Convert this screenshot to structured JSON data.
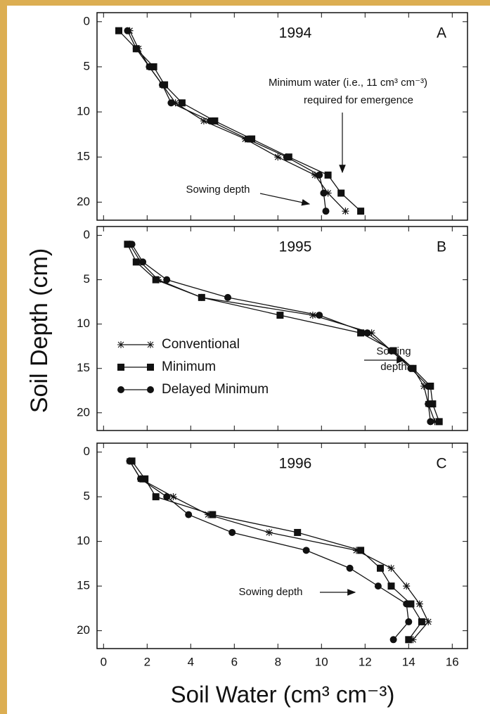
{
  "chart_data": [
    {
      "type": "line",
      "title": "1994",
      "panel": "A",
      "annotations": [
        "Minimum water (i.e., 11 cm³ cm⁻³)",
        "required for emergence",
        "Sowing depth"
      ],
      "depth": [
        1,
        3,
        5,
        7,
        9,
        11,
        13,
        15,
        17,
        19,
        21
      ],
      "xlim": [
        -0.3,
        16.7
      ],
      "ylim": [
        -1,
        22
      ],
      "y_inverted": true,
      "yticks": [
        0,
        5,
        10,
        15,
        20
      ],
      "series": [
        {
          "name": "Conventional",
          "color": "#111111",
          "marker": "asterisk",
          "values": [
            1.2,
            1.6,
            2.1,
            2.7,
            3.3,
            4.6,
            6.5,
            8.0,
            9.7,
            10.3,
            11.1
          ]
        },
        {
          "name": "Minimum",
          "color": "#111111",
          "marker": "square",
          "values": [
            0.7,
            1.5,
            2.3,
            2.8,
            3.6,
            5.1,
            6.8,
            8.5,
            10.3,
            10.9,
            11.8
          ]
        },
        {
          "name": "Delayed Minimum",
          "color": "#111111",
          "marker": "circle",
          "values": [
            1.1,
            1.5,
            2.1,
            2.7,
            3.1,
            4.9,
            6.6,
            8.4,
            9.9,
            10.1,
            10.2
          ]
        }
      ]
    },
    {
      "type": "line",
      "title": "1995",
      "panel": "B",
      "y_label": "Soil Depth (cm)",
      "legend": true,
      "annotations": [
        "Sowing",
        "depth"
      ],
      "depth": [
        1,
        3,
        5,
        7,
        9,
        11,
        13,
        15,
        17,
        19,
        21
      ],
      "xlim": [
        -0.3,
        16.7
      ],
      "ylim": [
        -1,
        22
      ],
      "y_inverted": true,
      "yticks": [
        0,
        5,
        10,
        15,
        20
      ],
      "series": [
        {
          "name": "Conventional",
          "color": "#111111",
          "marker": "asterisk",
          "values": [
            1.2,
            1.7,
            2.5,
            4.5,
            9.6,
            12.3,
            13.2,
            14.2,
            14.7,
            14.9,
            15.2
          ]
        },
        {
          "name": "Minimum",
          "color": "#111111",
          "marker": "square",
          "values": [
            1.1,
            1.5,
            2.4,
            4.5,
            8.1,
            11.8,
            13.3,
            14.2,
            15.0,
            15.1,
            15.4
          ]
        },
        {
          "name": "Delayed Minimum",
          "color": "#111111",
          "marker": "circle",
          "values": [
            1.3,
            1.8,
            2.9,
            5.7,
            9.9,
            12.1,
            13.2,
            14.1,
            14.9,
            14.9,
            15.0
          ]
        }
      ]
    },
    {
      "type": "line",
      "title": "1996",
      "panel": "C",
      "x_label": "Soil Water (cm³ cm⁻³)",
      "annotations": [
        "Sowing depth"
      ],
      "depth": [
        1,
        3,
        5,
        7,
        9,
        11,
        13,
        15,
        17,
        19,
        21
      ],
      "xlim": [
        -0.3,
        16.7
      ],
      "xticks": [
        0,
        2,
        4,
        6,
        8,
        10,
        12,
        14,
        16
      ],
      "ylim": [
        -1,
        22
      ],
      "y_inverted": true,
      "yticks": [
        0,
        5,
        10,
        15,
        20
      ],
      "series": [
        {
          "name": "Conventional",
          "color": "#111111",
          "marker": "asterisk",
          "values": [
            1.2,
            1.7,
            3.2,
            4.8,
            7.6,
            11.6,
            13.2,
            13.9,
            14.5,
            14.9,
            14.2
          ]
        },
        {
          "name": "Minimum",
          "color": "#111111",
          "marker": "square",
          "values": [
            1.3,
            1.9,
            2.4,
            5.0,
            8.9,
            11.8,
            12.7,
            13.2,
            14.1,
            14.6,
            14.0
          ]
        },
        {
          "name": "Delayed Minimum",
          "color": "#111111",
          "marker": "circle",
          "values": [
            1.2,
            1.7,
            2.9,
            3.9,
            5.9,
            9.3,
            11.3,
            12.6,
            13.9,
            14.0,
            13.3
          ]
        }
      ]
    }
  ]
}
